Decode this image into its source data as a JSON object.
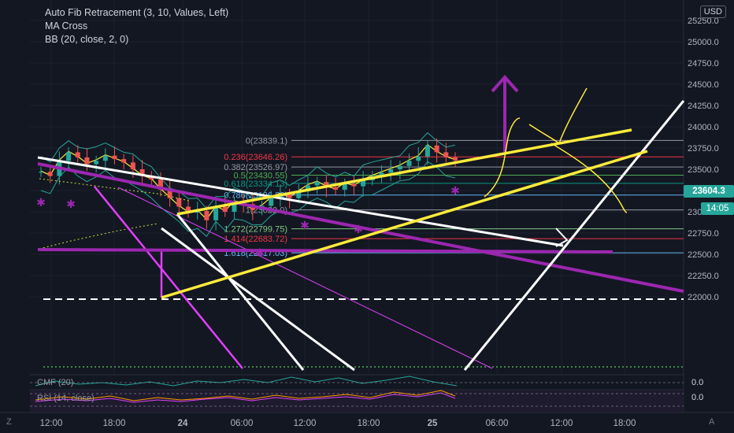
{
  "legend": {
    "line1": "Auto Fib Retracement (3, 10, Values, Left)",
    "line2": "MA Cross",
    "line3": "BB (20, close, 2, 0)"
  },
  "currency_label": "USD",
  "price_tag": "23604.3",
  "time_tag": "14:05",
  "price_tag_color": "#26a69a",
  "time_tag_color": "#26a69a",
  "sub_panels": {
    "cmf_label": "CMF (20)",
    "cmf_value": "0.0",
    "rsi_label": "RSI (14, close)",
    "rsi_value": "0.0"
  },
  "corner_z": "Z",
  "corner_a": "A",
  "chart_data": {
    "type": "line",
    "title": "",
    "y_axis_ticks": [
      "25250.0",
      "25000.0",
      "24750.0",
      "24500.0",
      "24250.0",
      "24000.0",
      "23750.0",
      "23500.0",
      "23250.0",
      "23000.0",
      "22750.0",
      "22500.0",
      "22250.0",
      "22000.0"
    ],
    "x_axis_ticks": [
      "12:00",
      "18:00",
      "24",
      "06:00",
      "12:00",
      "18:00",
      "25",
      "06:00",
      "12:00",
      "18:00"
    ],
    "ylim": [
      21900,
      25400
    ],
    "fib_levels": [
      {
        "label": "0(23839.1)",
        "price": 23839.1,
        "color": "#9598a1"
      },
      {
        "label": "0.236(23646.26)",
        "price": 23646.26,
        "color": "#f23645"
      },
      {
        "label": "0.382(23526.97)",
        "price": 23526.97,
        "color": "#9598a1"
      },
      {
        "label": "0.5(23430.55)",
        "price": 23430.55,
        "color": "#4caf50"
      },
      {
        "label": "0.618(23334.13)",
        "price": 23334.13,
        "color": "#089981"
      },
      {
        "label": "0.786(23196.86)",
        "price": 23196.86,
        "color": "#64b5f6"
      },
      {
        "label": "1(23022.0)",
        "price": 23022.0,
        "color": "#9598a1"
      },
      {
        "label": "1.272(22799.75)",
        "price": 22799.75,
        "color": "#81c784"
      },
      {
        "label": "1.414(22683.72)",
        "price": 22683.72,
        "color": "#f23645"
      },
      {
        "label": "1.618(22517.03)",
        "price": 22517.03,
        "color": "#64b5f6"
      }
    ],
    "close_series": [
      23470,
      23420,
      23600,
      23700,
      23640,
      23560,
      23600,
      23660,
      23620,
      23580,
      23500,
      23420,
      23380,
      23260,
      23160,
      23060,
      22990,
      23010,
      22900,
      23060,
      23000,
      23120,
      23090,
      23020,
      23070,
      23160,
      23210,
      23160,
      23240,
      23310,
      23350,
      23290,
      23260,
      23330,
      23300,
      23370,
      23420,
      23460,
      23500,
      23540,
      23600,
      23650,
      23780,
      23700,
      23640,
      23604.3
    ],
    "grid": true,
    "legend": "top-left"
  }
}
